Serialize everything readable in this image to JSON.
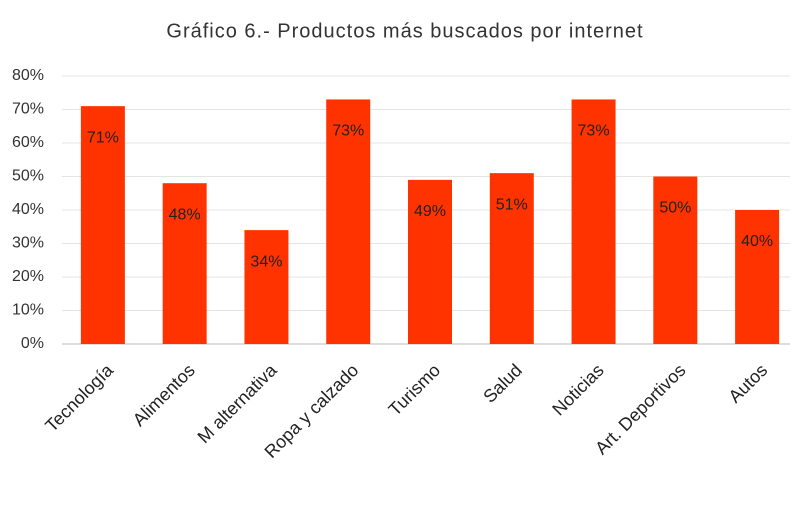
{
  "chart_data": {
    "type": "bar",
    "title": "Gráfico 6.- Productos más buscados por internet",
    "categories": [
      "Tecnología",
      "Alimentos",
      "M alternativa",
      "Ropa y calzado",
      "Turismo",
      "Salud",
      "Noticias",
      "Art. Deportivos",
      "Autos"
    ],
    "values": [
      71,
      48,
      34,
      73,
      49,
      51,
      73,
      50,
      40
    ],
    "value_labels": [
      "71%",
      "48%",
      "34%",
      "73%",
      "49%",
      "51%",
      "73%",
      "50%",
      "40%"
    ],
    "color": "#ff3300",
    "ylim": [
      0,
      80
    ],
    "yticks": [
      {
        "value": 0,
        "label": "0%"
      },
      {
        "value": 10,
        "label": "10%"
      },
      {
        "value": 20,
        "label": "20%"
      },
      {
        "value": 30,
        "label": "30%"
      },
      {
        "value": 40,
        "label": "40%"
      },
      {
        "value": 50,
        "label": "50%"
      },
      {
        "value": 60,
        "label": "60%"
      },
      {
        "value": 70,
        "label": "70%"
      },
      {
        "value": 80,
        "label": "80%"
      }
    ],
    "grid": true
  }
}
